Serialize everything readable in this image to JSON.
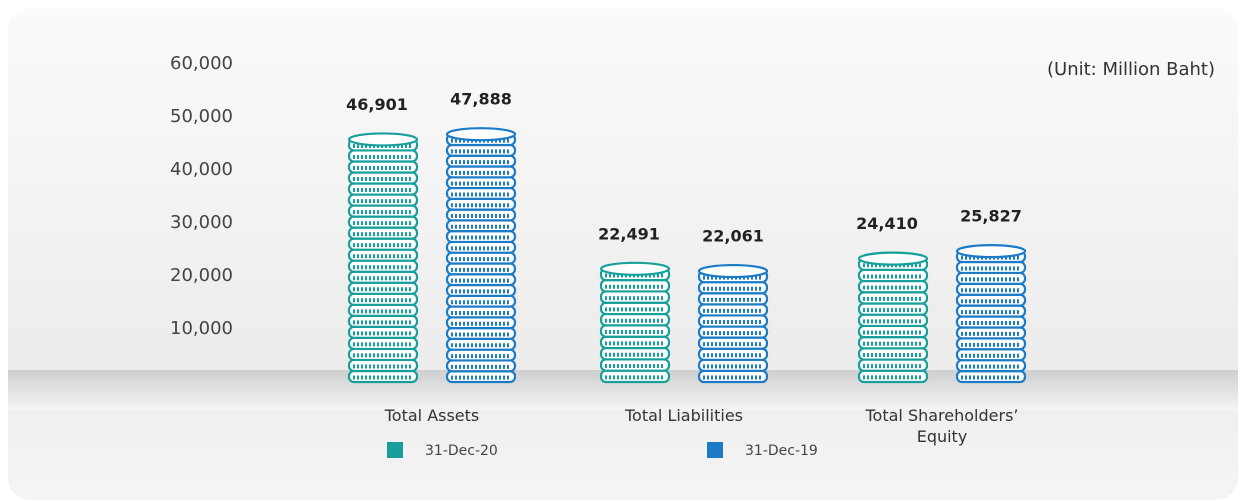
{
  "chart_data": {
    "type": "bar",
    "unit_note": "(Unit: Million Baht)",
    "categories": [
      "Total Assets",
      "Total Liabilities",
      "Total Shareholders’ Equity"
    ],
    "series": [
      {
        "name": "31-Dec-20",
        "color": "#17a09b",
        "values": [
          46901,
          22491,
          24410
        ],
        "value_labels": [
          "46,901",
          "22,491",
          "24,410"
        ]
      },
      {
        "name": "31-Dec-19",
        "color": "#1b7bc6",
        "values": [
          47888,
          22061,
          25827
        ],
        "value_labels": [
          "47,888",
          "22,061",
          "25,827"
        ]
      }
    ],
    "ylim": [
      0,
      60000
    ],
    "yticks": [
      {
        "value": 10000,
        "label": "10,000"
      },
      {
        "value": 20000,
        "label": "20,000"
      },
      {
        "value": 30000,
        "label": "30,000"
      },
      {
        "value": 40000,
        "label": "40,000"
      },
      {
        "value": 50000,
        "label": "50,000"
      },
      {
        "value": 60000,
        "label": "60,000"
      }
    ],
    "legend": "bottom"
  }
}
